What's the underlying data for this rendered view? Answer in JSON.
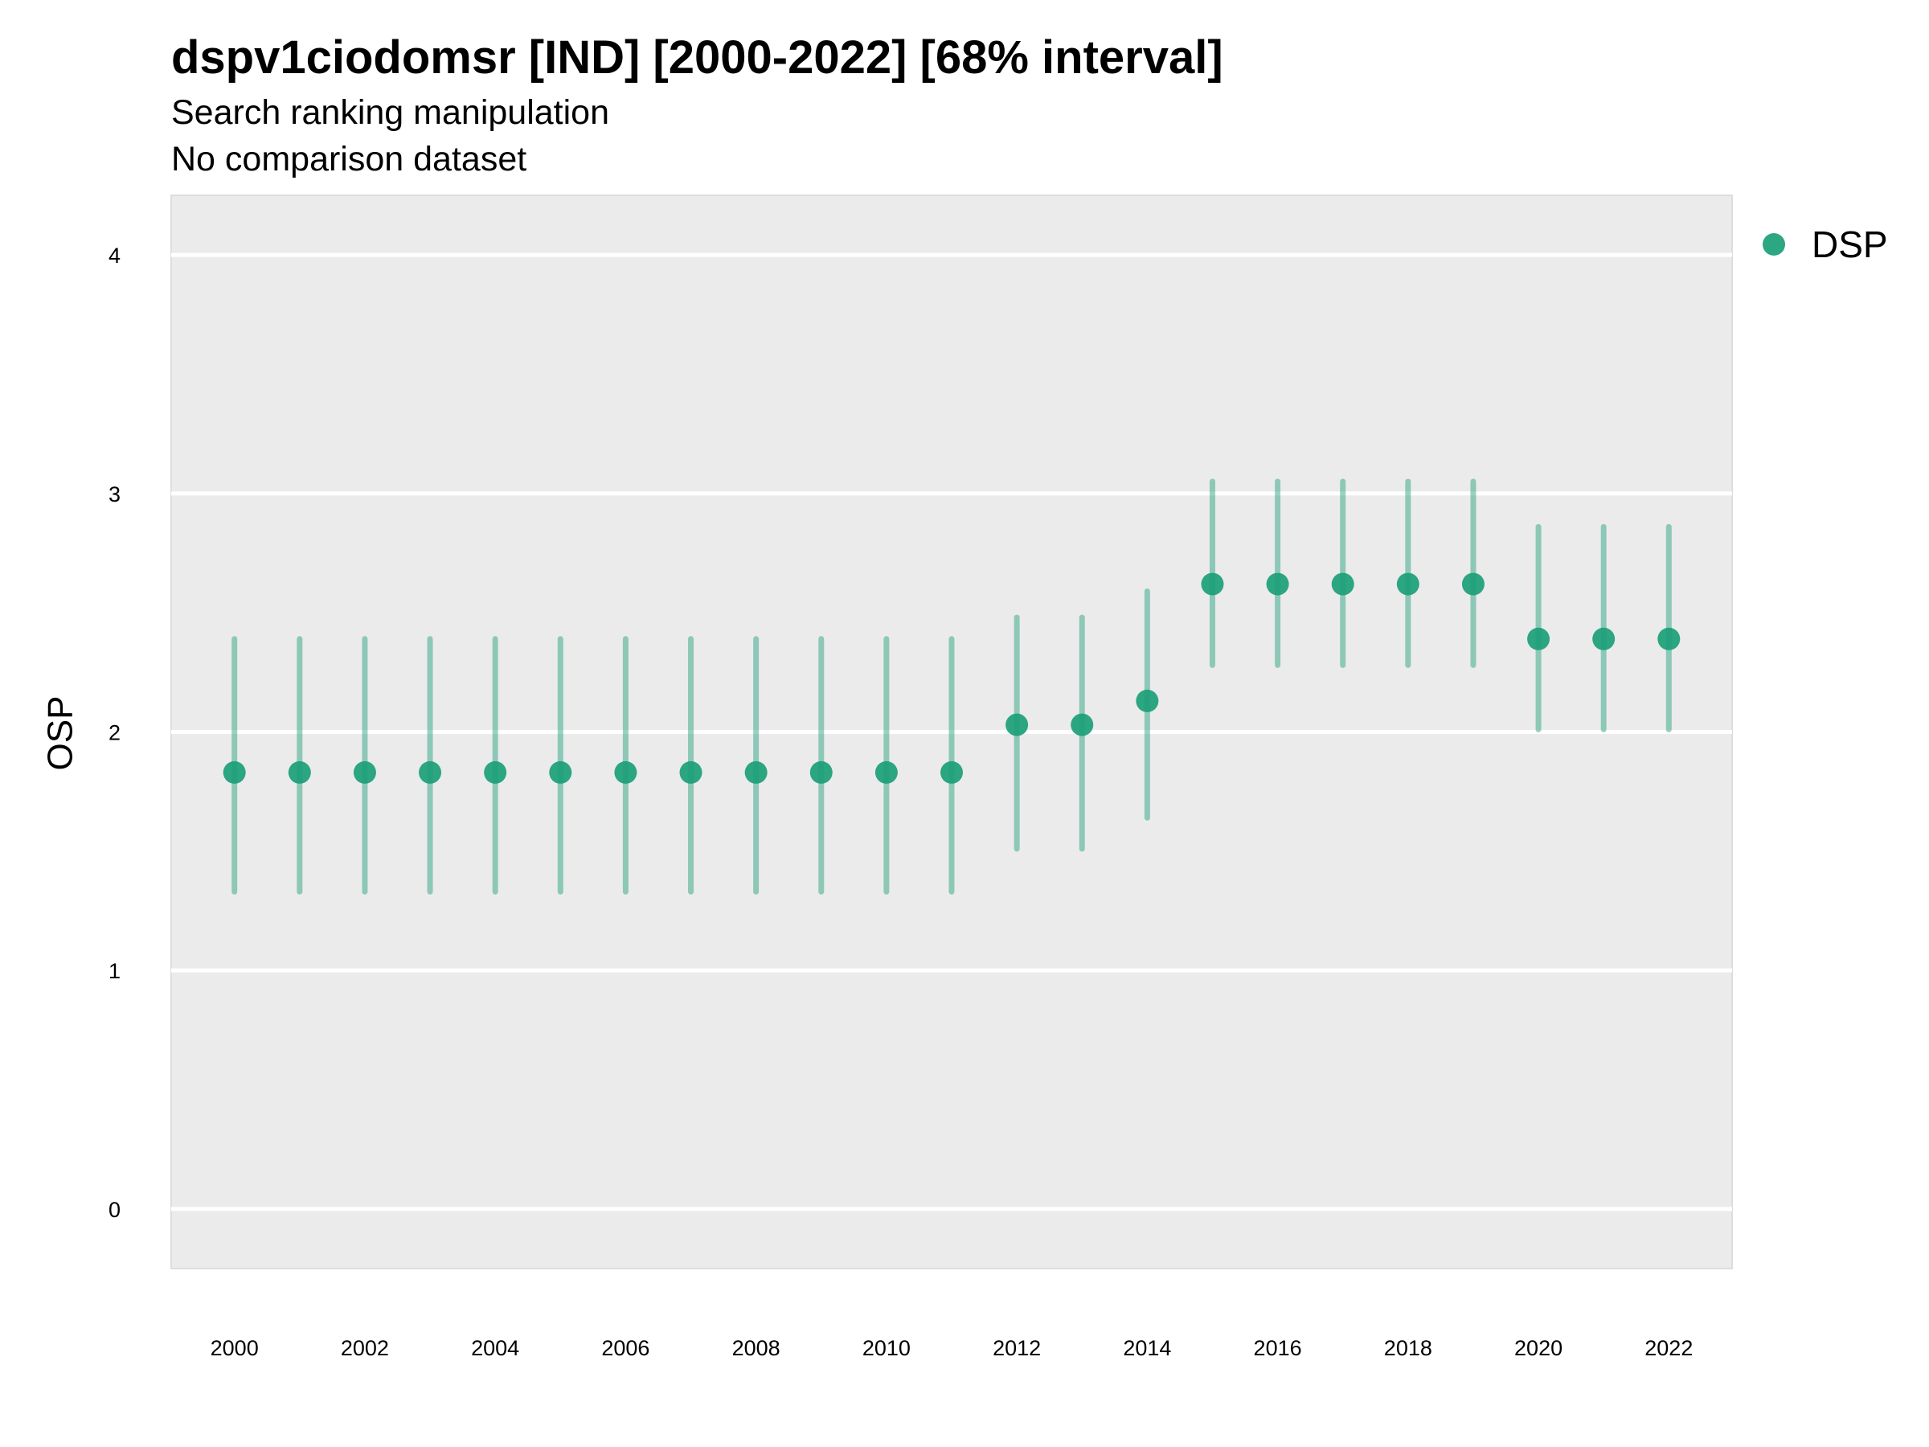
{
  "chart_data": {
    "type": "scatter",
    "title": "dspv1ciodomsr [IND] [2000-2022] [68% interval]",
    "subtitle_lines": [
      "Search ranking manipulation",
      "No comparison dataset"
    ],
    "xlabel": "",
    "ylabel": "OSP",
    "ylim": [
      -0.25,
      4.25
    ],
    "yticks": [
      "0",
      "1",
      "2",
      "3",
      "4"
    ],
    "xticks": [
      "2000",
      "2002",
      "2004",
      "2006",
      "2008",
      "2010",
      "2012",
      "2014",
      "2016",
      "2018",
      "2020",
      "2022"
    ],
    "grid": true,
    "legend_position": "top-right",
    "series": [
      {
        "name": "DSP",
        "color": "#1b9e77",
        "x": [
          2000,
          2001,
          2002,
          2003,
          2004,
          2005,
          2006,
          2007,
          2008,
          2009,
          2010,
          2011,
          2012,
          2013,
          2014,
          2015,
          2016,
          2017,
          2018,
          2019,
          2020,
          2021,
          2022
        ],
        "y": [
          1.83,
          1.83,
          1.83,
          1.83,
          1.83,
          1.83,
          1.83,
          1.83,
          1.83,
          1.83,
          1.83,
          1.83,
          2.03,
          2.03,
          2.13,
          2.62,
          2.62,
          2.62,
          2.62,
          2.62,
          2.39,
          2.39,
          2.39
        ],
        "lower": [
          1.33,
          1.33,
          1.33,
          1.33,
          1.33,
          1.33,
          1.33,
          1.33,
          1.33,
          1.33,
          1.33,
          1.33,
          1.51,
          1.51,
          1.64,
          2.28,
          2.28,
          2.28,
          2.28,
          2.28,
          2.01,
          2.01,
          2.01
        ],
        "upper": [
          2.39,
          2.39,
          2.39,
          2.39,
          2.39,
          2.39,
          2.39,
          2.39,
          2.39,
          2.39,
          2.39,
          2.39,
          2.48,
          2.48,
          2.59,
          3.05,
          3.05,
          3.05,
          3.05,
          3.05,
          2.86,
          2.86,
          2.86
        ]
      }
    ]
  }
}
